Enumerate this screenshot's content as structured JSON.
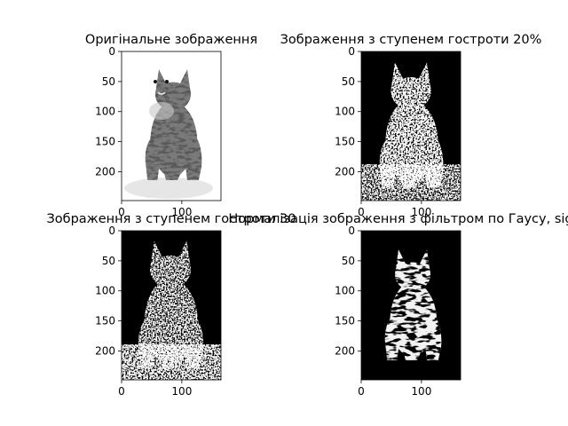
{
  "figure": {
    "background": "#ffffff",
    "axis_color": "#000000"
  },
  "chart_data": [
    {
      "type": "heatmap",
      "title": "Оригінальне зображення",
      "image": "grayscale photo of a sitting tabby cat on white background",
      "xlim": [
        0,
        165
      ],
      "ylim": [
        0,
        248
      ],
      "xticks": [
        0,
        100
      ],
      "yticks": [
        0,
        50,
        100,
        150,
        200
      ]
    },
    {
      "type": "heatmap",
      "title": "Зображення з ступенем гостроти 20%",
      "image": "edge-like sharpened cat, white noisy texture on black",
      "xlim": [
        0,
        165
      ],
      "ylim": [
        0,
        248
      ],
      "xticks": [
        0,
        100
      ],
      "yticks": [
        0,
        50,
        100,
        150,
        200
      ]
    },
    {
      "type": "heatmap",
      "title": "Зображення з ступенем гостроти 30",
      "image": "edge-like sharpened cat, white noisy texture on black",
      "xlim": [
        0,
        165
      ],
      "ylim": [
        0,
        248
      ],
      "xticks": [
        0,
        100
      ],
      "yticks": [
        0,
        50,
        100,
        150,
        200
      ]
    },
    {
      "type": "heatmap",
      "title": "Нормалізація зображення з фільтром по Гаусу, sigma",
      "image": "high-contrast white cat silhouette with stripes on black",
      "xlim": [
        0,
        165
      ],
      "ylim": [
        0,
        248
      ],
      "xticks": [
        0,
        100
      ],
      "yticks": [
        0,
        50,
        100,
        150,
        200
      ]
    }
  ]
}
